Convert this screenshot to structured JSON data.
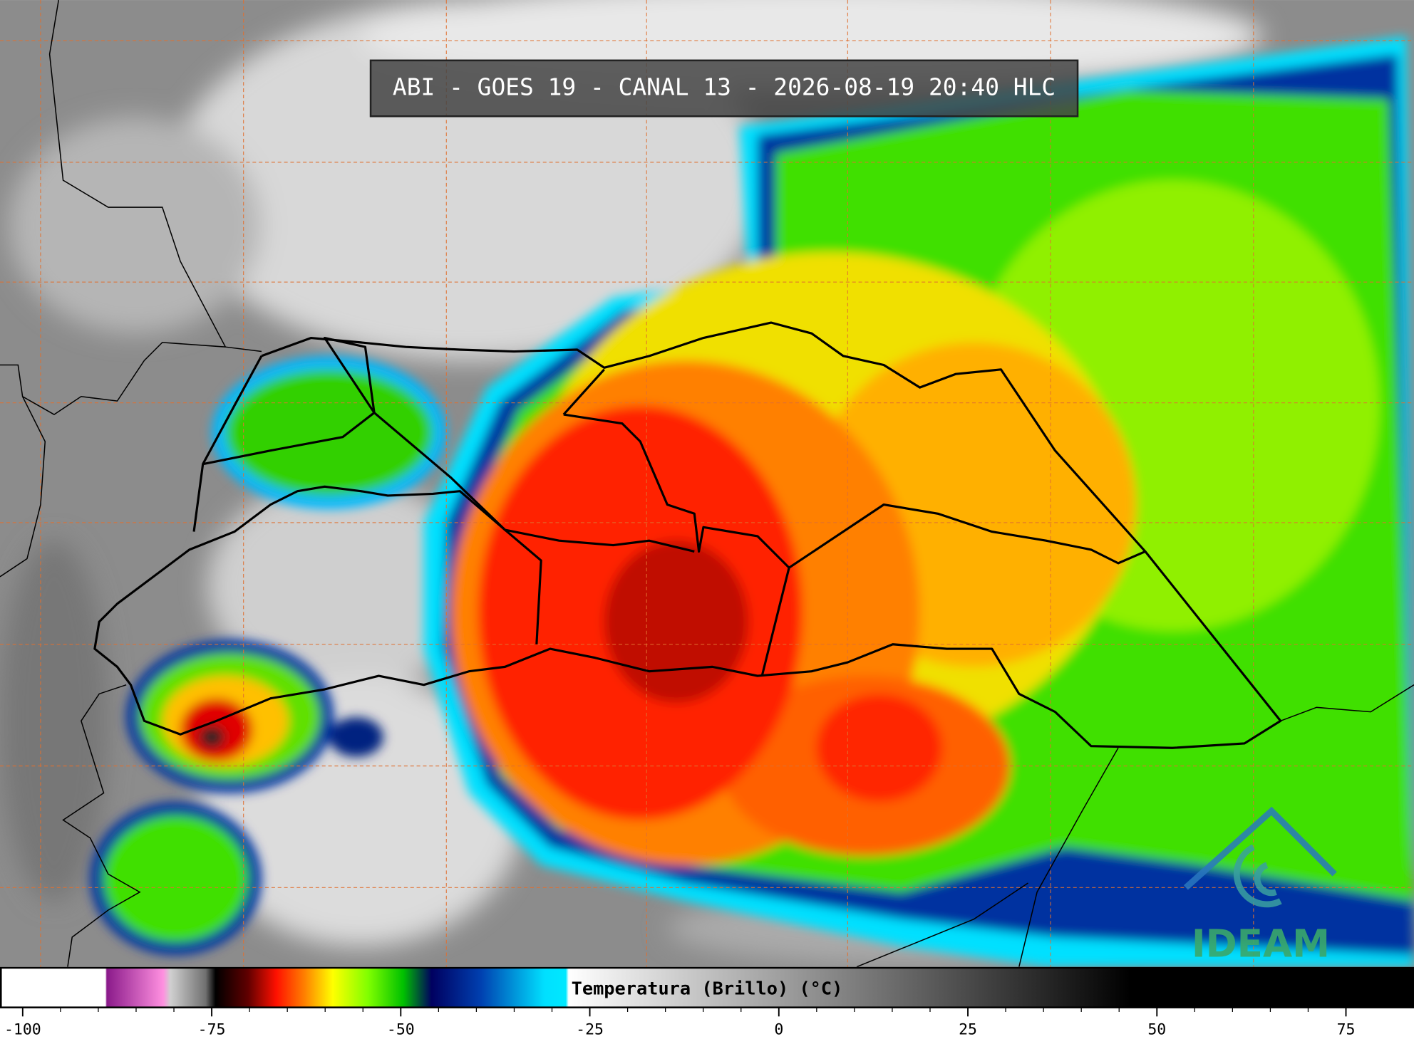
{
  "title": "ABI - GOES 19 - CANAL 13 - 2026-08-19 20:40 HLC",
  "colorbar": {
    "label": "Temperatura (Brillo) (°C)",
    "range": [
      -103,
      84
    ],
    "ticks": [
      -100,
      -75,
      -50,
      -25,
      0,
      25,
      50,
      75
    ]
  },
  "logo": "IDEAM"
}
